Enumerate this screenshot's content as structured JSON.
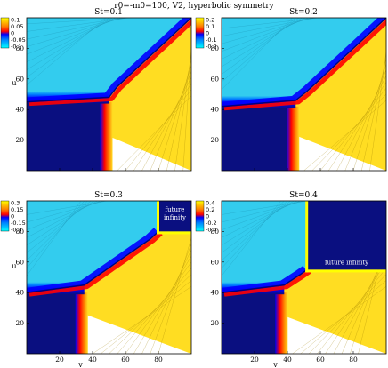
{
  "figure": {
    "title": "r0=-m0=100, V2, hyperbolic symmetry"
  },
  "colors": {
    "low": "#00ffff",
    "midlow": "#0000ff",
    "deep": "#00007f",
    "mid": "#ff0000",
    "high": "#ffff00",
    "plateau_cyan": "#33ccee",
    "plateau_yellow": "#ffdd22",
    "region_dark": "#0a0f80",
    "region_red": "#e83010"
  },
  "chart_data": [
    {
      "type": "heatmap",
      "title": "St=0.1",
      "xlabel": "v",
      "ylabel": "u",
      "xlim": [
        0,
        100
      ],
      "ylim": [
        0,
        100
      ],
      "xticks": [
        20,
        40,
        60,
        80
      ],
      "yticks": [
        20,
        40,
        60,
        80
      ],
      "show_xticks": false,
      "show_yticks": true,
      "show_ylabel": true,
      "show_xlabel": false,
      "colorbar": {
        "ticks": [
          "0.1",
          "0.05",
          "0",
          "-0.05",
          "-0.1"
        ],
        "range": [
          -0.1,
          0.1
        ]
      },
      "breakpoints": [
        [
          0,
          45
        ],
        [
          50,
          48
        ],
        [
          55,
          55
        ],
        [
          62,
          62
        ],
        [
          70,
          70
        ],
        [
          78,
          78
        ],
        [
          85,
          85
        ],
        [
          100,
          100
        ]
      ],
      "annotation": ""
    },
    {
      "type": "heatmap",
      "title": "St=0.2",
      "xlabel": "v",
      "ylabel": "u",
      "xlim": [
        0,
        100
      ],
      "ylim": [
        0,
        100
      ],
      "xticks": [
        20,
        40,
        60,
        80
      ],
      "yticks": [
        20,
        40,
        60,
        80
      ],
      "show_xticks": false,
      "show_yticks": true,
      "show_ylabel": false,
      "show_xlabel": false,
      "colorbar": {
        "ticks": [
          "0.2",
          "0.1",
          "0",
          "-0.1",
          "-0.2"
        ],
        "range": [
          -0.2,
          0.2
        ]
      },
      "breakpoints": [
        [
          0,
          42
        ],
        [
          45,
          46
        ],
        [
          52,
          52
        ],
        [
          60,
          60
        ],
        [
          70,
          70
        ],
        [
          80,
          80
        ],
        [
          100,
          100
        ]
      ],
      "annotation": ""
    },
    {
      "type": "heatmap",
      "title": "St=0.3",
      "xlabel": "v",
      "ylabel": "u",
      "xlim": [
        0,
        100
      ],
      "ylim": [
        0,
        100
      ],
      "xticks": [
        20,
        40,
        60,
        80
      ],
      "yticks": [
        20,
        40,
        60,
        80
      ],
      "show_xticks": true,
      "show_yticks": true,
      "show_ylabel": true,
      "show_xlabel": true,
      "colorbar": {
        "ticks": [
          "0.3",
          "0.15",
          "0",
          "-0.15",
          "-0.3"
        ],
        "range": [
          -0.3,
          0.3
        ]
      },
      "breakpoints": [
        [
          0,
          40
        ],
        [
          35,
          45
        ],
        [
          55,
          60
        ],
        [
          75,
          75
        ],
        [
          80,
          80
        ]
      ],
      "annotation": "future infinity"
    },
    {
      "type": "heatmap",
      "title": "St=0.4",
      "xlabel": "v",
      "ylabel": "u",
      "xlim": [
        0,
        100
      ],
      "ylim": [
        0,
        100
      ],
      "xticks": [
        20,
        40,
        60,
        80
      ],
      "yticks": [
        20,
        40,
        60,
        80
      ],
      "show_xticks": true,
      "show_yticks": true,
      "show_ylabel": false,
      "show_xlabel": true,
      "colorbar": {
        "ticks": [
          "0.4",
          "0.2",
          "0",
          "-0.2",
          "-0.4"
        ],
        "range": [
          -0.4,
          0.4
        ]
      },
      "breakpoints": [
        [
          0,
          40
        ],
        [
          38,
          45
        ],
        [
          48,
          52
        ],
        [
          52,
          55
        ]
      ],
      "annotation": "future infinity"
    }
  ]
}
